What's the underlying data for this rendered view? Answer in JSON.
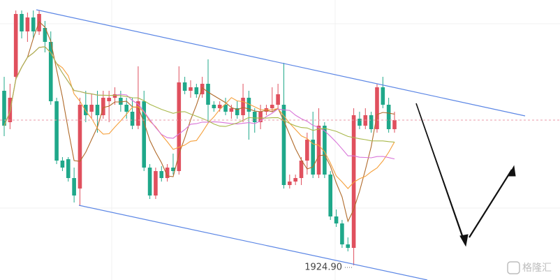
{
  "chart_data": {
    "type": "candlestick",
    "ylim": [
      1922.8,
      1962.9
    ],
    "up_color": "#e0505e",
    "down_color": "#1fa88a",
    "annotation": "1924.90",
    "watermark": "格隆汇",
    "moving_averages": [
      {
        "period": 5,
        "color": "#b06a2a"
      },
      {
        "period": 10,
        "color": "#f5a03c"
      },
      {
        "period": 20,
        "color": "#d873d8"
      },
      {
        "period": 30,
        "color": "#a8b84a"
      }
    ],
    "open": [
      1949.9,
      1945.4,
      1951.9,
      1960.9,
      1958.4,
      1960.4,
      1958.4,
      1958.9,
      1956.9,
      1948.4,
      1939.9,
      1940.1,
      1937.4,
      1935.9,
      1947.9,
      1946.9,
      1947.9,
      1946.4,
      1948.4,
      1948.9,
      1948.9,
      1947.9,
      1946.9,
      1944.9,
      1948.4,
      1938.9,
      1934.9,
      1938.4,
      1937.4,
      1938.9,
      1938.4,
      1951.1,
      1949.9,
      1950.4,
      1949.4,
      1950.9,
      1947.9,
      1947.4,
      1947.9,
      1946.9,
      1947.4,
      1946.4,
      1948.9,
      1946.9,
      1945.4,
      1946.9,
      1947.4,
      1947.9,
      1947.9,
      1936.4,
      1936.9,
      1937.4,
      1939.9,
      1942.9,
      1937.9,
      1944.9,
      1937.9,
      1931.9,
      1930.9,
      1927.9,
      1927.4,
      1945.9,
      1944.9,
      1946.4,
      1944.4,
      1950.4,
      1947.9,
      1944.4
    ],
    "high": [
      1951.9,
      1950.9,
      1961.4,
      1961.4,
      1961.1,
      1961.4,
      1961.4,
      1959.9,
      1958.4,
      1948.9,
      1940.4,
      1940.4,
      1938.9,
      1948.9,
      1949.9,
      1949.4,
      1949.9,
      1949.9,
      1949.9,
      1950.4,
      1949.9,
      1948.9,
      1948.9,
      1953.4,
      1949.9,
      1939.4,
      1938.9,
      1939.1,
      1939.4,
      1940.9,
      1953.4,
      1951.9,
      1951.4,
      1950.9,
      1951.9,
      1954.4,
      1948.4,
      1948.4,
      1948.9,
      1947.9,
      1948.4,
      1950.9,
      1949.9,
      1947.4,
      1947.9,
      1947.9,
      1950.4,
      1950.9,
      1953.9,
      1937.9,
      1937.9,
      1940.4,
      1943.9,
      1946.9,
      1947.4,
      1945.4,
      1938.4,
      1932.9,
      1931.4,
      1928.9,
      1947.4,
      1946.9,
      1947.4,
      1946.9,
      1950.9,
      1951.9,
      1948.9,
      1946.9
    ],
    "low": [
      1943.4,
      1944.4,
      1951.4,
      1957.4,
      1956.9,
      1957.4,
      1957.9,
      1955.4,
      1947.9,
      1939.4,
      1938.4,
      1936.9,
      1933.9,
      1933.4,
      1945.4,
      1945.9,
      1943.9,
      1945.9,
      1945.4,
      1947.9,
      1946.9,
      1945.9,
      1944.4,
      1944.4,
      1938.4,
      1934.4,
      1934.4,
      1936.9,
      1936.9,
      1937.9,
      1937.9,
      1949.4,
      1948.9,
      1948.9,
      1948.9,
      1945.4,
      1946.9,
      1946.9,
      1946.4,
      1945.9,
      1945.9,
      1945.4,
      1942.9,
      1943.9,
      1944.4,
      1946.4,
      1946.9,
      1947.4,
      1935.9,
      1935.9,
      1936.4,
      1936.4,
      1937.9,
      1937.4,
      1937.4,
      1937.4,
      1931.4,
      1930.4,
      1927.4,
      1926.9,
      1924.9,
      1944.4,
      1944.4,
      1943.9,
      1943.9,
      1947.4,
      1943.9,
      1943.9
    ],
    "close": [
      1944.9,
      1948.9,
      1960.9,
      1958.4,
      1960.4,
      1958.4,
      1960.9,
      1956.9,
      1948.4,
      1939.9,
      1938.9,
      1937.4,
      1934.9,
      1947.9,
      1946.4,
      1947.9,
      1946.4,
      1948.9,
      1948.9,
      1949.4,
      1947.9,
      1946.9,
      1944.9,
      1948.4,
      1938.9,
      1934.9,
      1938.4,
      1937.4,
      1938.9,
      1938.4,
      1951.1,
      1949.9,
      1950.4,
      1949.4,
      1950.9,
      1947.9,
      1947.4,
      1947.9,
      1946.9,
      1947.4,
      1946.4,
      1948.9,
      1946.9,
      1945.4,
      1946.9,
      1947.4,
      1947.9,
      1949.4,
      1936.4,
      1936.9,
      1937.4,
      1939.9,
      1942.9,
      1937.9,
      1944.9,
      1937.9,
      1931.9,
      1930.9,
      1927.9,
      1927.4,
      1946.4,
      1944.9,
      1946.4,
      1944.4,
      1950.4,
      1947.9,
      1944.4,
      1945.7
    ]
  }
}
